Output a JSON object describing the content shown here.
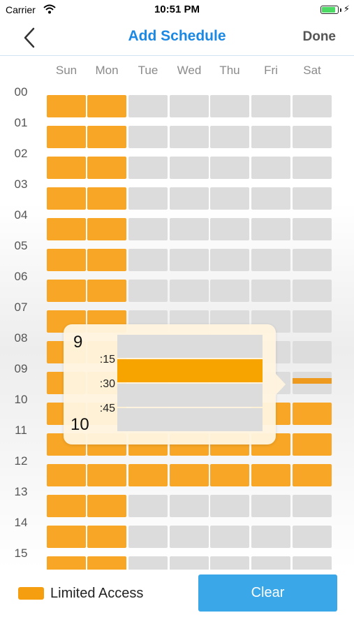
{
  "status_bar": {
    "carrier": "Carrier",
    "time": "10:51 PM",
    "icons": [
      "wifi-icon",
      "battery-icon",
      "charging-bolt-icon"
    ]
  },
  "nav": {
    "back_icon": "chevron-left-icon",
    "title": "Add Schedule",
    "done_label": "Done",
    "title_color": "#1b88e4"
  },
  "grid": {
    "days": [
      "Sun",
      "Mon",
      "Tue",
      "Wed",
      "Thu",
      "Fri",
      "Sat"
    ],
    "hours": [
      "00",
      "01",
      "02",
      "03",
      "04",
      "05",
      "06",
      "07",
      "08",
      "09",
      "10",
      "11",
      "12",
      "13",
      "14",
      "15"
    ],
    "rows": [
      [
        1,
        1,
        0,
        0,
        0,
        0,
        0
      ],
      [
        1,
        1,
        0,
        0,
        0,
        0,
        0
      ],
      [
        1,
        1,
        0,
        0,
        0,
        0,
        0
      ],
      [
        1,
        1,
        0,
        0,
        0,
        0,
        0
      ],
      [
        1,
        1,
        0,
        0,
        0,
        0,
        0
      ],
      [
        1,
        1,
        0,
        0,
        0,
        0,
        0
      ],
      [
        1,
        1,
        0,
        0,
        0,
        0,
        0
      ],
      [
        1,
        1,
        0,
        0,
        0,
        0,
        0
      ],
      [
        1,
        1,
        0,
        0,
        0,
        0,
        0
      ],
      [
        1,
        1,
        0,
        0,
        0,
        0,
        0
      ],
      [
        1,
        1,
        0,
        0,
        0,
        1,
        1
      ],
      [
        1,
        1,
        1,
        1,
        1,
        1,
        1
      ],
      [
        1,
        1,
        1,
        1,
        1,
        1,
        1
      ],
      [
        1,
        1,
        0,
        0,
        0,
        0,
        0
      ],
      [
        1,
        1,
        0,
        0,
        0,
        0,
        0
      ],
      [
        1,
        1,
        0,
        0,
        0,
        0,
        0
      ]
    ],
    "on_color": "#f7a625",
    "off_color": "#dcdcdc"
  },
  "popup": {
    "hour_start": "9",
    "hour_end": "10",
    "minute_labels": [
      ":15",
      ":30",
      ":45"
    ],
    "slots": [
      0,
      1,
      0,
      0
    ],
    "selected_color": "#f7a300"
  },
  "legend": {
    "label": "Limited Access",
    "color": "#f59e10"
  },
  "clear_button": {
    "label": "Clear",
    "color": "#3aa7e8"
  }
}
